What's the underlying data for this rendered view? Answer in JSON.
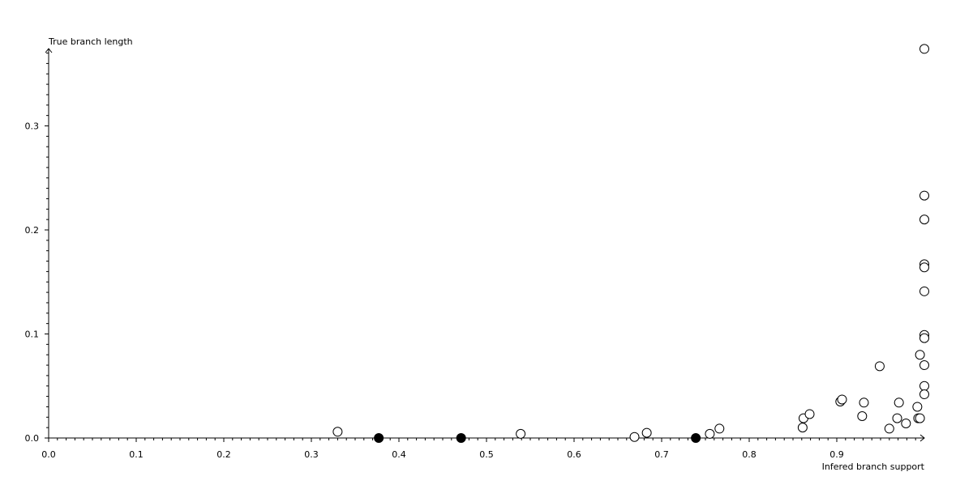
{
  "chart_data": {
    "type": "scatter",
    "xlabel": "Infered branch support",
    "ylabel": "True branch length",
    "xlim": [
      0,
      1.0
    ],
    "ylim": [
      0,
      0.374
    ],
    "x_ticks": [
      "0.0",
      "0.1",
      "0.2",
      "0.3",
      "0.4",
      "0.5",
      "0.6",
      "0.7",
      "0.8",
      "0.9"
    ],
    "y_ticks": [
      "0.0",
      "0.1",
      "0.2",
      "0.3"
    ],
    "grid": false,
    "series": [
      {
        "marker": "open-circle",
        "color": "#000000",
        "points": [
          [
            0.33,
            0.006
          ],
          [
            0.539,
            0.004
          ],
          [
            0.669,
            0.001
          ],
          [
            0.683,
            0.005
          ],
          [
            0.755,
            0.004
          ],
          [
            0.766,
            0.009
          ],
          [
            0.861,
            0.01
          ],
          [
            0.862,
            0.019
          ],
          [
            0.869,
            0.023
          ],
          [
            0.904,
            0.035
          ],
          [
            0.906,
            0.037
          ],
          [
            0.929,
            0.021
          ],
          [
            0.931,
            0.034
          ],
          [
            0.949,
            0.069
          ],
          [
            0.96,
            0.009
          ],
          [
            0.969,
            0.019
          ],
          [
            0.971,
            0.034
          ],
          [
            0.979,
            0.014
          ],
          [
            0.992,
            0.03
          ],
          [
            0.993,
            0.019
          ],
          [
            0.995,
            0.019
          ],
          [
            0.995,
            0.08
          ],
          [
            1.0,
            0.374
          ],
          [
            1.0,
            0.233
          ],
          [
            1.0,
            0.21
          ],
          [
            1.0,
            0.167
          ],
          [
            1.0,
            0.164
          ],
          [
            1.0,
            0.141
          ],
          [
            1.0,
            0.099
          ],
          [
            1.0,
            0.096
          ],
          [
            1.0,
            0.07
          ],
          [
            1.0,
            0.05
          ],
          [
            1.0,
            0.042
          ]
        ]
      },
      {
        "marker": "filled-circle",
        "color": "#000000",
        "points": [
          [
            0.377,
            0.0
          ],
          [
            0.471,
            0.0
          ],
          [
            0.739,
            0.0
          ]
        ]
      }
    ]
  }
}
